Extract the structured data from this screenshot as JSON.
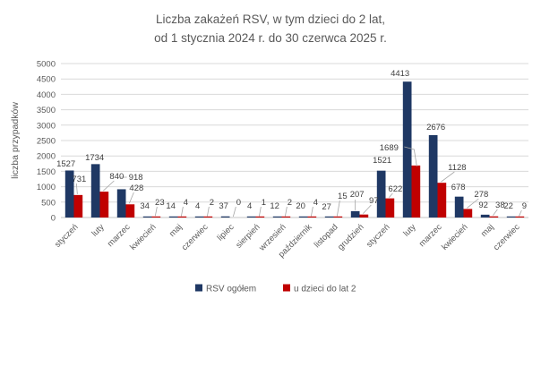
{
  "title": {
    "line1": "Liczba zakażeń RSV, w tym dzieci do 2 lat,",
    "line2": "od 1 stycznia 2024 r. do 30 czerwca 2025 r."
  },
  "colors": {
    "rsv_total": "#1f3864",
    "children_under_2": "#c00000",
    "gridline": "#d9d9d9",
    "axis_line": "#c6c6c6",
    "leader_line": "#a6a6a6",
    "title_text": "#595959",
    "data_label_text": "#404040"
  },
  "legend": {
    "items": [
      {
        "label": "RSV ogółem",
        "color": "#1f3864"
      },
      {
        "label": "u dzieci do lat 2",
        "color": "#c00000"
      }
    ]
  },
  "chart_data": {
    "type": "bar",
    "title": "Liczba zakażeń RSV, w tym dzieci do 2 lat, od 1 stycznia 2024 r. do 30 czerwca 2025 r.",
    "xlabel": "",
    "ylabel": "liczba przypadków",
    "ylim": [
      0,
      5000
    ],
    "ytick_step": 500,
    "yticks": [
      0,
      500,
      1000,
      1500,
      2000,
      2500,
      3000,
      3500,
      4000,
      4500,
      5000
    ],
    "grid": true,
    "legend_position": "bottom",
    "categories": [
      "styczeń",
      "luty",
      "marzec",
      "kwiecień",
      "maj",
      "czerwiec",
      "lipiec",
      "sierpień",
      "wrzesień",
      "październik",
      "listopad",
      "grudzień",
      "styczeń",
      "luty",
      "marzec",
      "kwiecień",
      "maj",
      "czerwiec"
    ],
    "series": [
      {
        "name": "RSV ogółem",
        "color": "#1f3864",
        "values": [
          1527,
          1734,
          918,
          34,
          14,
          4,
          37,
          4,
          12,
          20,
          27,
          207,
          1521,
          4413,
          2676,
          678,
          92,
          22
        ]
      },
      {
        "name": "u dzieci do lat 2",
        "color": "#c00000",
        "values": [
          731,
          840,
          428,
          23,
          4,
          2,
          0,
          1,
          2,
          4,
          15,
          97,
          622,
          1689,
          1128,
          278,
          38,
          9
        ]
      }
    ]
  }
}
